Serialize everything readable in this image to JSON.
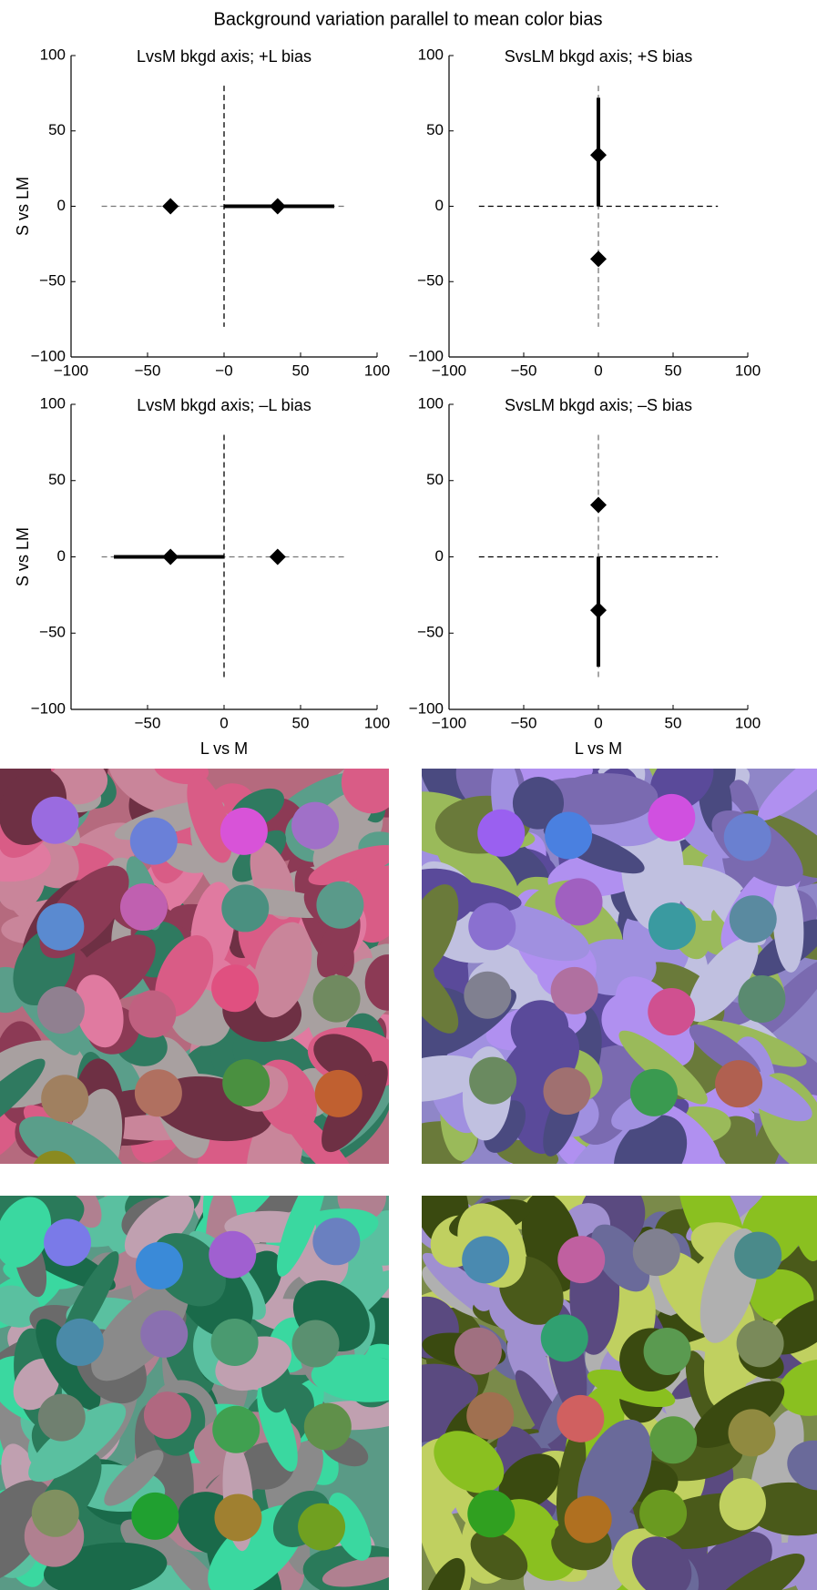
{
  "title": "Background variation parallel to mean color bias",
  "chart_data": [
    {
      "type": "line",
      "title": "LvsM bkgd axis; +L bias",
      "ylabel": "S vs LM",
      "xlim": [
        -100,
        100
      ],
      "ylim": [
        -100,
        100
      ],
      "xticks": [
        {
          "value": -100,
          "label": "−100"
        },
        {
          "value": -50,
          "label": "−50"
        },
        {
          "value": 0,
          "label": "−0"
        },
        50,
        100
      ],
      "yticks": [
        {
          "value": -100,
          "label": "−100"
        },
        {
          "value": -50,
          "label": "−50"
        },
        0,
        50,
        100
      ],
      "series": [
        {
          "x": [
            -80,
            80
          ],
          "y": [
            0,
            0
          ],
          "color": "#777777",
          "dash": true
        },
        {
          "x": [
            0,
            0
          ],
          "y": [
            80,
            -80
          ],
          "color": "#000000",
          "dash": true
        },
        {
          "x": [
            0,
            72
          ],
          "y": [
            0,
            0
          ],
          "color": "#000000",
          "width": 4
        },
        {
          "x": [
            -35,
            35
          ],
          "y": [
            0,
            0
          ],
          "color": "#000000",
          "marker": "diamond"
        }
      ]
    },
    {
      "type": "line",
      "title": "SvsLM bkgd axis; +S bias",
      "xlim": [
        -100,
        100
      ],
      "ylim": [
        -100,
        100
      ],
      "xticks": [
        {
          "value": -100,
          "label": "−100"
        },
        {
          "value": -50,
          "label": "−50"
        },
        0,
        50,
        100
      ],
      "yticks": [
        {
          "value": -100,
          "label": "−100"
        },
        {
          "value": -50,
          "label": "−50"
        },
        0,
        50,
        100
      ],
      "series": [
        {
          "x": [
            -80,
            80
          ],
          "y": [
            0,
            0
          ],
          "color": "#000000",
          "dash": true
        },
        {
          "x": [
            0,
            0
          ],
          "y": [
            80,
            -80
          ],
          "color": "#777777",
          "dash": true
        },
        {
          "x": [
            0,
            0
          ],
          "y": [
            0,
            72
          ],
          "color": "#000000",
          "width": 4
        },
        {
          "x": [
            0,
            0
          ],
          "y": [
            34,
            -35
          ],
          "color": "#000000",
          "marker": "diamond"
        }
      ]
    },
    {
      "type": "line",
      "title": "LvsM bkgd axis; –L bias",
      "ylabel": "S vs LM",
      "xlabel": "L vs M",
      "xlim": [
        -100,
        100
      ],
      "ylim": [
        -100,
        100
      ],
      "xticks": [
        {
          "value": -50,
          "label": "−50"
        },
        0,
        50,
        100
      ],
      "yticks": [
        {
          "value": -100,
          "label": "−100"
        },
        {
          "value": -50,
          "label": "−50"
        },
        0,
        50,
        100
      ],
      "series": [
        {
          "x": [
            -80,
            80
          ],
          "y": [
            0,
            0
          ],
          "color": "#777777",
          "dash": true
        },
        {
          "x": [
            0,
            0
          ],
          "y": [
            80,
            -80
          ],
          "color": "#000000",
          "dash": true
        },
        {
          "x": [
            -72,
            0
          ],
          "y": [
            0,
            0
          ],
          "color": "#000000",
          "width": 4
        },
        {
          "x": [
            -35,
            35
          ],
          "y": [
            0,
            0
          ],
          "color": "#000000",
          "marker": "diamond"
        }
      ]
    },
    {
      "type": "line",
      "title": "SvsLM bkgd axis; –S bias",
      "xlabel": "L vs M",
      "xlim": [
        -100,
        100
      ],
      "ylim": [
        -100,
        100
      ],
      "xticks": [
        {
          "value": -100,
          "label": "−100"
        },
        {
          "value": -50,
          "label": "−50"
        },
        0,
        50,
        100
      ],
      "yticks": [
        {
          "value": -100,
          "label": "−100"
        },
        {
          "value": -50,
          "label": "−50"
        },
        0,
        50,
        100
      ],
      "series": [
        {
          "x": [
            -80,
            80
          ],
          "y": [
            0,
            0
          ],
          "color": "#000000",
          "dash": true
        },
        {
          "x": [
            0,
            0
          ],
          "y": [
            80,
            -80
          ],
          "color": "#777777",
          "dash": true
        },
        {
          "x": [
            0,
            0
          ],
          "y": [
            0,
            -72
          ],
          "color": "#000000",
          "width": 4
        },
        {
          "x": [
            0,
            0
          ],
          "y": [
            34,
            -35
          ],
          "color": "#000000",
          "marker": "diamond"
        }
      ]
    }
  ]
}
